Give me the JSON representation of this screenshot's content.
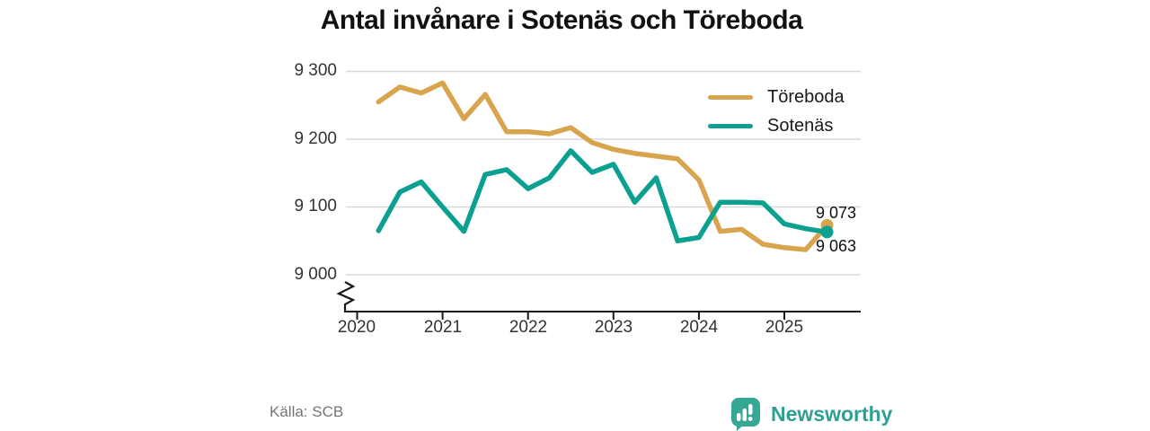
{
  "title": "Antal invånare i Sotenäs och Töreboda",
  "source": "Källa: SCB",
  "branding": {
    "logo_text": "Newsworthy",
    "logo_icon": "newsworthy-speech-bubble-bar-chart-icon",
    "brand_color": "#2ea091"
  },
  "chart_data": {
    "type": "line",
    "title": "Antal invånare i Sotenäs och Töreboda",
    "x_unit": "quarter",
    "x_start": "2020 Q1",
    "x_end": "2025 Q2",
    "x_tick_labels": [
      "2020",
      "2021",
      "2022",
      "2023",
      "2024",
      "2025"
    ],
    "y_tick_labels": [
      "9 300",
      "9 200",
      "9 100",
      "9 000"
    ],
    "y_ticks": [
      9300,
      9200,
      9100,
      9000
    ],
    "ylim": [
      9000,
      9300
    ],
    "axis_break": true,
    "grid": "horizontal",
    "legend_position": "top-right",
    "colors": {
      "toreboda": "#d8a44d",
      "sotenas": "#0ca091",
      "grid": "#d9d9d9",
      "axis": "#1a1a1a"
    },
    "legend": [
      {
        "label": "Töreboda",
        "color": "#d8a44d"
      },
      {
        "label": "Sotenäs",
        "color": "#0ca091"
      }
    ],
    "end_labels": {
      "toreboda": "9 073",
      "sotenas": "9 063"
    },
    "series": [
      {
        "name": "Töreboda",
        "color": "#d8a44d",
        "end_value": 9073,
        "end_label": "9 073",
        "values": [
          9255,
          9277,
          9268,
          9283,
          9230,
          9266,
          9211,
          9211,
          9208,
          9217,
          9195,
          9185,
          9179,
          9175,
          9171,
          9140,
          9064,
          9067,
          9045,
          9040,
          9037,
          9073
        ]
      },
      {
        "name": "Sotenäs",
        "color": "#0ca091",
        "end_value": 9063,
        "end_label": "9 063",
        "values": [
          9065,
          9122,
          9137,
          9100,
          9064,
          9148,
          9155,
          9127,
          9143,
          9183,
          9151,
          9163,
          9107,
          9143,
          9050,
          9055,
          9107,
          9107,
          9106,
          9075,
          9068,
          9063
        ]
      }
    ]
  }
}
